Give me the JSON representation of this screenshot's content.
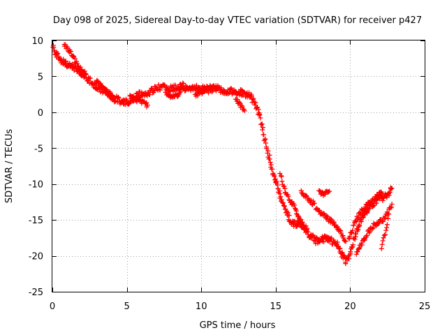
{
  "chart_data": {
    "type": "scatter",
    "title": "Day 098 of 2025, Sidereal Day-to-day VTEC variation (SDTVAR) for receiver p427",
    "xlabel": "GPS time / hours",
    "ylabel": "SDTVAR / TECUs",
    "xlim": [
      0,
      25
    ],
    "ylim": [
      -25,
      10
    ],
    "xticks": [
      0,
      5,
      10,
      15,
      20,
      25
    ],
    "yticks": [
      -25,
      -20,
      -15,
      -10,
      -5,
      0,
      5,
      10
    ],
    "xtick_labels": [
      "0",
      "5",
      "10",
      "15",
      "20",
      "25"
    ],
    "ytick_labels": [
      "-25",
      "-20",
      "-15",
      "-10",
      "-5",
      "0",
      "5",
      "10"
    ],
    "grid": true,
    "marker": "plus",
    "color": "#ff0000",
    "series": [
      {
        "name": "SDTVAR",
        "trace": [
          [
            0.0,
            9.3
          ],
          [
            0.3,
            8.0
          ],
          [
            0.6,
            7.2
          ],
          [
            1.0,
            6.6
          ],
          [
            1.3,
            6.3
          ],
          [
            1.6,
            6.0
          ],
          [
            2.0,
            5.3
          ],
          [
            2.4,
            4.6
          ],
          [
            2.8,
            3.9
          ],
          [
            3.2,
            3.3
          ],
          [
            3.6,
            2.8
          ],
          [
            4.0,
            2.2
          ],
          [
            4.4,
            1.7
          ],
          [
            4.8,
            1.3
          ],
          [
            5.0,
            1.4
          ],
          [
            5.4,
            1.9
          ],
          [
            5.8,
            2.4
          ],
          [
            6.2,
            2.6
          ],
          [
            6.6,
            2.9
          ],
          [
            7.0,
            3.3
          ],
          [
            7.4,
            3.6
          ],
          [
            7.8,
            3.1
          ],
          [
            8.2,
            3.4
          ],
          [
            8.6,
            3.5
          ],
          [
            9.0,
            3.2
          ],
          [
            9.4,
            3.4
          ],
          [
            9.8,
            3.3
          ],
          [
            10.2,
            3.2
          ],
          [
            10.6,
            3.1
          ],
          [
            11.0,
            3.3
          ],
          [
            11.4,
            3.0
          ],
          [
            11.8,
            3.0
          ],
          [
            12.2,
            2.9
          ],
          [
            12.6,
            2.8
          ],
          [
            13.0,
            2.5
          ],
          [
            13.3,
            2.2
          ],
          [
            13.6,
            1.2
          ],
          [
            13.9,
            -0.4
          ],
          [
            14.1,
            -2.2
          ],
          [
            14.3,
            -4.2
          ],
          [
            14.5,
            -5.8
          ],
          [
            14.7,
            -7.6
          ],
          [
            14.9,
            -8.9
          ],
          [
            15.1,
            -10.3
          ],
          [
            15.3,
            -11.6
          ],
          [
            15.5,
            -12.9
          ],
          [
            15.7,
            -13.8
          ],
          [
            15.9,
            -14.7
          ],
          [
            16.2,
            -15.6
          ],
          [
            16.5,
            -15.5
          ],
          [
            16.8,
            -16.0
          ],
          [
            17.1,
            -16.6
          ],
          [
            17.4,
            -17.4
          ],
          [
            17.7,
            -17.9
          ],
          [
            18.0,
            -17.8
          ],
          [
            18.3,
            -17.6
          ],
          [
            18.6,
            -17.9
          ],
          [
            18.9,
            -18.0
          ],
          [
            19.2,
            -18.6
          ],
          [
            19.5,
            -20.0
          ],
          [
            19.7,
            -20.9
          ],
          [
            19.9,
            -20.2
          ],
          [
            20.1,
            -18.9
          ],
          [
            20.3,
            -17.3
          ],
          [
            20.5,
            -16.1
          ],
          [
            20.7,
            -15.1
          ],
          [
            20.9,
            -14.3
          ],
          [
            21.1,
            -13.8
          ],
          [
            21.4,
            -13.0
          ],
          [
            21.7,
            -12.5
          ],
          [
            22.0,
            -12.0
          ],
          [
            22.3,
            -11.8
          ],
          [
            22.6,
            -11.2
          ],
          [
            22.8,
            -10.6
          ]
        ],
        "secondary_arcs": [
          [
            [
              0.8,
              9.4
            ],
            [
              1.2,
              8.4
            ],
            [
              1.5,
              7.3
            ],
            [
              1.8,
              6.2
            ],
            [
              2.2,
              5.4
            ]
          ],
          [
            [
              2.9,
              4.3
            ],
            [
              3.3,
              3.6
            ],
            [
              3.6,
              2.9
            ],
            [
              3.9,
              2.2
            ],
            [
              4.2,
              1.6
            ]
          ],
          [
            [
              5.2,
              2.1
            ],
            [
              5.6,
              1.8
            ],
            [
              6.0,
              1.4
            ],
            [
              6.4,
              1.0
            ]
          ],
          [
            [
              7.6,
              2.8
            ],
            [
              8.0,
              2.2
            ],
            [
              8.4,
              2.4
            ],
            [
              8.8,
              4.0
            ]
          ],
          [
            [
              9.6,
              2.5
            ],
            [
              10.0,
              2.7
            ],
            [
              10.4,
              3.5
            ],
            [
              11.2,
              3.4
            ]
          ],
          [
            [
              12.3,
              2.0
            ],
            [
              12.6,
              1.0
            ],
            [
              12.9,
              0.2
            ]
          ],
          [
            [
              15.3,
              -8.6
            ],
            [
              15.6,
              -10.7
            ],
            [
              15.9,
              -12.0
            ],
            [
              16.2,
              -13.0
            ],
            [
              16.5,
              -14.6
            ],
            [
              16.8,
              -15.6
            ],
            [
              17.1,
              -16.3
            ]
          ],
          [
            [
              16.7,
              -11.2
            ],
            [
              17.0,
              -11.6
            ],
            [
              17.3,
              -12.4
            ],
            [
              17.6,
              -12.7
            ]
          ],
          [
            [
              17.7,
              -13.4
            ],
            [
              18.0,
              -14.0
            ],
            [
              18.3,
              -14.4
            ],
            [
              18.6,
              -15.0
            ],
            [
              18.9,
              -15.4
            ],
            [
              19.2,
              -16.1
            ],
            [
              19.5,
              -17.3
            ],
            [
              19.7,
              -18.0
            ]
          ],
          [
            [
              17.9,
              -11.2
            ],
            [
              18.2,
              -11.4
            ],
            [
              18.6,
              -11.0
            ]
          ],
          [
            [
              19.9,
              -17.8
            ],
            [
              20.2,
              -16.0
            ],
            [
              20.5,
              -14.6
            ],
            [
              20.8,
              -13.6
            ],
            [
              21.2,
              -12.8
            ],
            [
              21.5,
              -12.2
            ],
            [
              21.8,
              -11.7
            ],
            [
              22.1,
              -11.2
            ]
          ],
          [
            [
              20.4,
              -19.6
            ],
            [
              20.8,
              -18.3
            ],
            [
              21.1,
              -17.0
            ],
            [
              21.5,
              -15.9
            ],
            [
              21.9,
              -15.3
            ],
            [
              22.2,
              -15.0
            ],
            [
              22.5,
              -14.2
            ],
            [
              22.8,
              -12.8
            ]
          ],
          [
            [
              22.1,
              -18.8
            ],
            [
              22.3,
              -17.2
            ],
            [
              22.5,
              -15.6
            ],
            [
              22.6,
              -14.2
            ]
          ]
        ]
      }
    ]
  }
}
